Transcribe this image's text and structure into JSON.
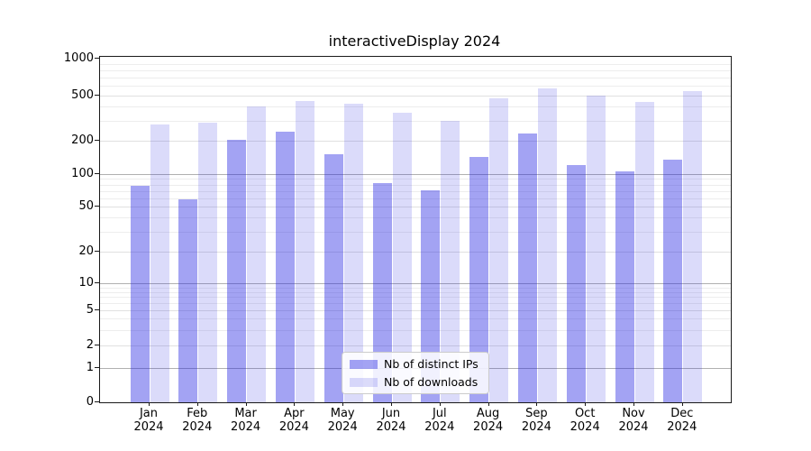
{
  "chart_data": {
    "type": "bar",
    "title": "interactiveDisplay 2024",
    "categories": [
      "Jan 2024",
      "Feb 2024",
      "Mar 2024",
      "Apr 2024",
      "May 2024",
      "Jun 2024",
      "Jul 2024",
      "Aug 2024",
      "Sep 2024",
      "Oct 2024",
      "Nov 2024",
      "Dec 2024"
    ],
    "series": [
      {
        "name": "Nb of distinct IPs",
        "color": "rgba(36,36,226,0.42)",
        "values": [
          78,
          58,
          202,
          240,
          151,
          83,
          71,
          142,
          232,
          121,
          106,
          136
        ]
      },
      {
        "name": "Nb of downloads",
        "color": "rgba(36,36,226,0.165)",
        "values": [
          280,
          291,
          404,
          448,
          421,
          355,
          301,
          470,
          576,
          500,
          442,
          544
        ]
      }
    ],
    "xlabel": "",
    "ylabel": "",
    "yticks": [
      0,
      1,
      2,
      5,
      10,
      20,
      50,
      100,
      200,
      500,
      1000
    ],
    "minor_yticks": [
      3,
      4,
      6,
      7,
      8,
      9,
      30,
      40,
      60,
      70,
      80,
      90,
      300,
      400,
      600,
      700,
      800,
      900
    ],
    "ylim": [
      0,
      1000
    ],
    "yscale": "log-like (0 baseline, decades 1-10-100-1000)",
    "grid": true,
    "legend_position": "lower center"
  }
}
